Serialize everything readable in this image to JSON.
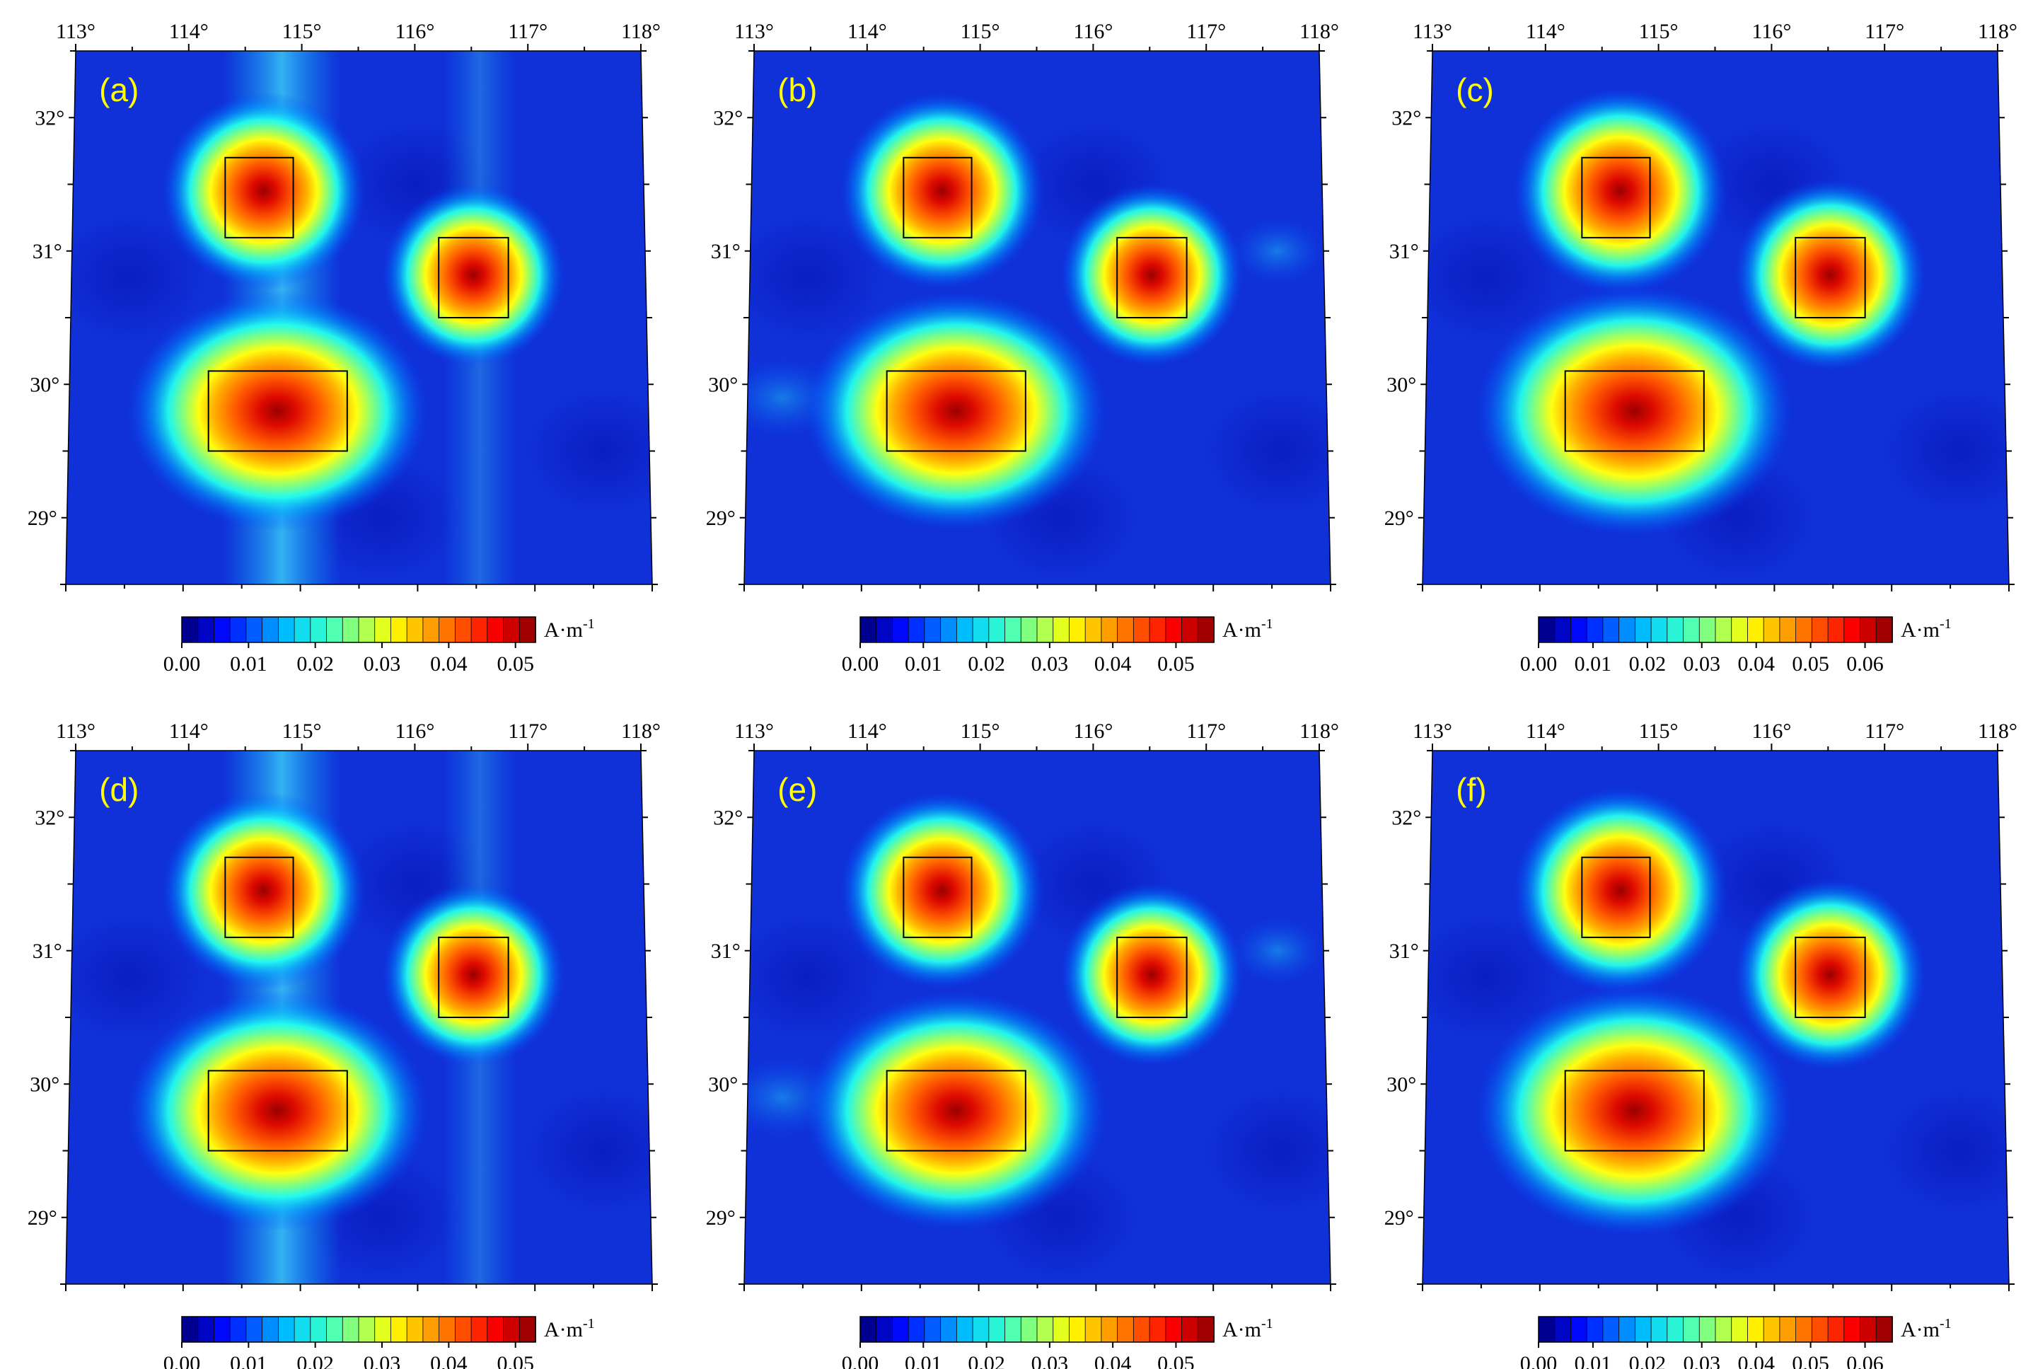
{
  "figure": {
    "colors": {
      "background_field": "#1030d8",
      "box_stroke": "#000000",
      "panel_label": "#ffff00",
      "text": "#000000"
    },
    "colormap": [
      "#000090",
      "#0008ff",
      "#0066ff",
      "#00ccff",
      "#33ffcc",
      "#99ff66",
      "#ffff00",
      "#ffaa00",
      "#ff5500",
      "#ff0000",
      "#a00000"
    ],
    "lon_ticks": [
      "113°",
      "114°",
      "115°",
      "116°",
      "117°",
      "118°"
    ],
    "lat_ticks": [
      "29°",
      "30°",
      "31°",
      "32°"
    ],
    "unit_label": "A·m",
    "unit_exponent": "-1",
    "source_boxes": [
      {
        "name": "upper-left-source",
        "lon": [
          114.33,
          114.93
        ],
        "lat": [
          31.1,
          31.7
        ]
      },
      {
        "name": "right-source",
        "lon": [
          116.2,
          116.8
        ],
        "lat": [
          30.5,
          31.1
        ]
      },
      {
        "name": "lower-source",
        "lon": [
          114.2,
          115.4
        ],
        "lat": [
          29.5,
          30.1
        ]
      }
    ],
    "panels": [
      {
        "id": "a",
        "label": "(a)",
        "colorbar_ticks": [
          "0.00",
          "0.01",
          "0.02",
          "0.03",
          "0.04",
          "0.05"
        ],
        "colorbar_max": 0.053,
        "style": "streaks",
        "peaks": [
          0.05,
          0.045,
          0.055
        ]
      },
      {
        "id": "b",
        "label": "(b)",
        "colorbar_ticks": [
          "0.00",
          "0.01",
          "0.02",
          "0.03",
          "0.04",
          "0.05"
        ],
        "colorbar_max": 0.056,
        "style": "smooth",
        "peaks": [
          0.05,
          0.045,
          0.052
        ]
      },
      {
        "id": "c",
        "label": "(c)",
        "colorbar_ticks": [
          "0.00",
          "0.01",
          "0.02",
          "0.03",
          "0.04",
          "0.05",
          "0.06"
        ],
        "colorbar_max": 0.065,
        "style": "clean",
        "peaks": [
          0.06,
          0.05,
          0.062
        ]
      },
      {
        "id": "d",
        "label": "(d)",
        "colorbar_ticks": [
          "0.00",
          "0.01",
          "0.02",
          "0.03",
          "0.04",
          "0.05"
        ],
        "colorbar_max": 0.053,
        "style": "streaks",
        "peaks": [
          0.05,
          0.045,
          0.055
        ]
      },
      {
        "id": "e",
        "label": "(e)",
        "colorbar_ticks": [
          "0.00",
          "0.01",
          "0.02",
          "0.03",
          "0.04",
          "0.05"
        ],
        "colorbar_max": 0.056,
        "style": "smooth",
        "peaks": [
          0.05,
          0.045,
          0.052
        ]
      },
      {
        "id": "f",
        "label": "(f)",
        "colorbar_ticks": [
          "0.00",
          "0.01",
          "0.02",
          "0.03",
          "0.04",
          "0.05",
          "0.06"
        ],
        "colorbar_max": 0.065,
        "style": "clean",
        "peaks": [
          0.06,
          0.05,
          0.062
        ]
      }
    ]
  }
}
